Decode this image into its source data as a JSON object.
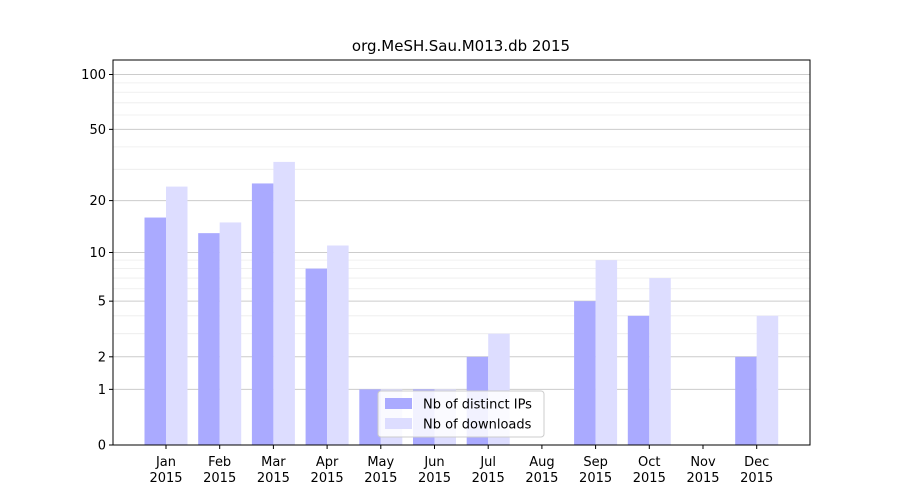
{
  "chart_data": {
    "type": "bar",
    "title": "org.MeSH.Sau.M013.db 2015",
    "xlabel": "",
    "ylabel": "",
    "yscale": "log(1+y)",
    "ylim": [
      0,
      120
    ],
    "yticks": [
      0,
      1,
      2,
      5,
      10,
      20,
      50,
      100
    ],
    "ytick_labels": [
      "0",
      "1",
      "2",
      "5",
      "10",
      "20",
      "50",
      "100"
    ],
    "categories": [
      "Jan\n2015",
      "Feb\n2015",
      "Mar\n2015",
      "Apr\n2015",
      "May\n2015",
      "Jun\n2015",
      "Jul\n2015",
      "Aug\n2015",
      "Sep\n2015",
      "Oct\n2015",
      "Nov\n2015",
      "Dec\n2015"
    ],
    "series": [
      {
        "name": "Nb of distinct IPs",
        "color": "#aaaaff",
        "values": [
          16,
          13,
          25,
          8,
          1,
          1,
          2,
          0,
          5,
          4,
          0,
          2
        ]
      },
      {
        "name": "Nb of downloads",
        "color": "#ddddff",
        "values": [
          24,
          15,
          33,
          11,
          1,
          1,
          3,
          0,
          9,
          7,
          0,
          4
        ]
      }
    ],
    "legend": "lower-center",
    "grid": "horizontal"
  }
}
